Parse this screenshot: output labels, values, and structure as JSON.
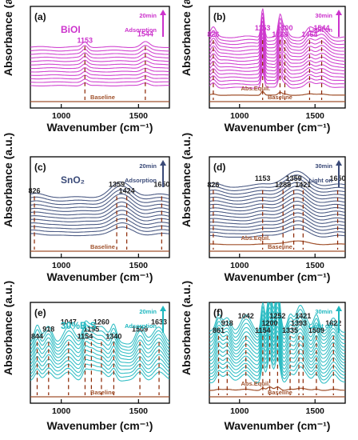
{
  "colors": {
    "bioi": "#cc33cc",
    "sno2": "#3a4a78",
    "composite": "#20b8c0",
    "baseline": "#a0522d",
    "peak_marker": "#8b2500"
  },
  "axis_titles": {
    "y": "Absorbance (a.u.)",
    "x": "Wavenumber (cm⁻¹)"
  },
  "chart_data": [
    {
      "panel": "(a)",
      "type": "line",
      "sample_label": "BiOI",
      "time_label": "20min",
      "mode_label": "Adsorption",
      "xlim": [
        800,
        1700
      ],
      "x_ticks": [
        "1000",
        "1500"
      ],
      "series_color": "bioi",
      "n_curves": 12,
      "equil_label": "",
      "baseline_label": "Baseline",
      "peaks": [
        {
          "label": "1153",
          "x": 1153
        },
        {
          "label": "1544",
          "x": 1544
        }
      ]
    },
    {
      "panel": "(b)",
      "type": "line",
      "sample_label": "",
      "time_label": "30min",
      "mode_label": "Light on",
      "xlim": [
        800,
        1700
      ],
      "x_ticks": [
        "1000",
        "1500"
      ],
      "series_color": "bioi",
      "n_curves": 16,
      "equil_label": "Abs.Equil.",
      "baseline_label": "Baseline",
      "peaks": [
        {
          "label": "826",
          "x": 826
        },
        {
          "label": "1153",
          "x": 1153
        },
        {
          "label": "1268",
          "x": 1268
        },
        {
          "label": "1300",
          "x": 1300
        },
        {
          "label": "1464",
          "x": 1464
        },
        {
          "label": "1544",
          "x": 1544
        }
      ]
    },
    {
      "panel": "(c)",
      "type": "line",
      "sample_label": "SnO₂",
      "time_label": "20min",
      "mode_label": "Adsorption",
      "xlim": [
        800,
        1700
      ],
      "x_ticks": [
        "1000",
        "1500"
      ],
      "series_color": "sno2",
      "n_curves": 12,
      "equil_label": "",
      "baseline_label": "Baseline",
      "peaks": [
        {
          "label": "826",
          "x": 826
        },
        {
          "label": "1359",
          "x": 1359
        },
        {
          "label": "1424",
          "x": 1424
        },
        {
          "label": "1650",
          "x": 1650
        }
      ]
    },
    {
      "panel": "(d)",
      "type": "line",
      "sample_label": "",
      "time_label": "30min",
      "mode_label": "Light on",
      "xlim": [
        800,
        1700
      ],
      "x_ticks": [
        "1000",
        "1500"
      ],
      "series_color": "sno2",
      "n_curves": 16,
      "equil_label": "Abs.Equil.",
      "baseline_label": "Baseline",
      "peaks": [
        {
          "label": "826",
          "x": 826
        },
        {
          "label": "1153",
          "x": 1153
        },
        {
          "label": "1288",
          "x": 1288
        },
        {
          "label": "1359",
          "x": 1359
        },
        {
          "label": "1421",
          "x": 1421
        },
        {
          "label": "1650",
          "x": 1650
        }
      ]
    },
    {
      "panel": "(e)",
      "type": "line",
      "sample_label": "30%B-S",
      "time_label": "20min",
      "mode_label": "Adsorption",
      "xlim": [
        800,
        1700
      ],
      "x_ticks": [
        "1000",
        "1500"
      ],
      "series_color": "composite",
      "n_curves": 12,
      "equil_label": "",
      "baseline_label": "Baseline",
      "peaks": [
        {
          "label": "844",
          "x": 844
        },
        {
          "label": "918",
          "x": 918
        },
        {
          "label": "1047",
          "x": 1047
        },
        {
          "label": "1154",
          "x": 1154
        },
        {
          "label": "1195",
          "x": 1195
        },
        {
          "label": "1260",
          "x": 1260
        },
        {
          "label": "1340",
          "x": 1340
        },
        {
          "label": "1509",
          "x": 1509
        },
        {
          "label": "1633",
          "x": 1633
        }
      ]
    },
    {
      "panel": "(f)",
      "type": "line",
      "sample_label": "",
      "time_label": "30min",
      "mode_label": "Light on",
      "xlim": [
        800,
        1700
      ],
      "x_ticks": [
        "1000",
        "1500"
      ],
      "series_color": "composite",
      "n_curves": 16,
      "equil_label": "Abs.Equil.",
      "baseline_label": "Baseline",
      "peaks": [
        {
          "label": "861",
          "x": 861
        },
        {
          "label": "918",
          "x": 918
        },
        {
          "label": "1042",
          "x": 1042
        },
        {
          "label": "1154",
          "x": 1154
        },
        {
          "label": "1200",
          "x": 1200
        },
        {
          "label": "1252",
          "x": 1252
        },
        {
          "label": "1335",
          "x": 1335
        },
        {
          "label": "1393",
          "x": 1393
        },
        {
          "label": "1421",
          "x": 1421
        },
        {
          "label": "1509",
          "x": 1509
        },
        {
          "label": "1622",
          "x": 1622
        }
      ]
    }
  ]
}
